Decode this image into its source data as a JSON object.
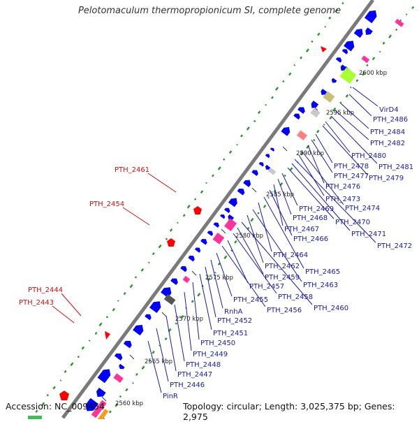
{
  "title": "Pelotomaculum thermopropionicum SI, complete genome",
  "accession": "Accession: NC_009454",
  "topology": "Topology: circular; Length: 3,025,375 bp; Genes: 2,975",
  "colors": {
    "backbone": "#7a7a7a",
    "cds": "#0000ff",
    "pink": "#ff3399",
    "red": "#ff0000",
    "lime": "#aaff33",
    "olive": "#c8c07a",
    "lightgray": "#c8c8c8",
    "salmon": "#ff8080",
    "darkgray": "#555555",
    "orange": "#ff9922",
    "gc_dot": "#229922",
    "label_blue": "#1a1aa8",
    "label_red": "#cc1111"
  },
  "kbp_ticks": [
    "2560 kbp",
    "2565 kbp",
    "2570 kbp",
    "2575 kbp",
    "2580 kbp",
    "2585 kbp",
    "2590 kbp",
    "2595 kbp",
    "2600 kbp"
  ],
  "blue_labels": [
    "VirD4",
    "PTH_2486",
    "PTH_2484",
    "PTH_2482",
    "PTH_2481",
    "PTH_2480",
    "PTH_2479",
    "PTH_2478",
    "PTH_2477",
    "PTH_2476",
    "PTH_2474",
    "PTH_2473",
    "PTH_2472",
    "PTH_2471",
    "PTH_2470",
    "PTH_2469",
    "PTH_2468",
    "PTH_2467",
    "PTH_2466",
    "PTH_2465",
    "PTH_2464",
    "PTH_2463",
    "PTH_2462",
    "PTH_2460",
    "PTH_2459",
    "PTH_2458",
    "PTH_2457",
    "PTH_2456",
    "PTH_2455",
    "RnhA",
    "PTH_2452",
    "PTH_2451",
    "PTH_2450",
    "PTH_2449",
    "PTH_2448",
    "PTH_2447",
    "PTH_2446",
    "PinR"
  ],
  "red_labels": [
    "PTH_2461",
    "PTH_2454",
    "PTH_2444",
    "PTH_2443"
  ]
}
